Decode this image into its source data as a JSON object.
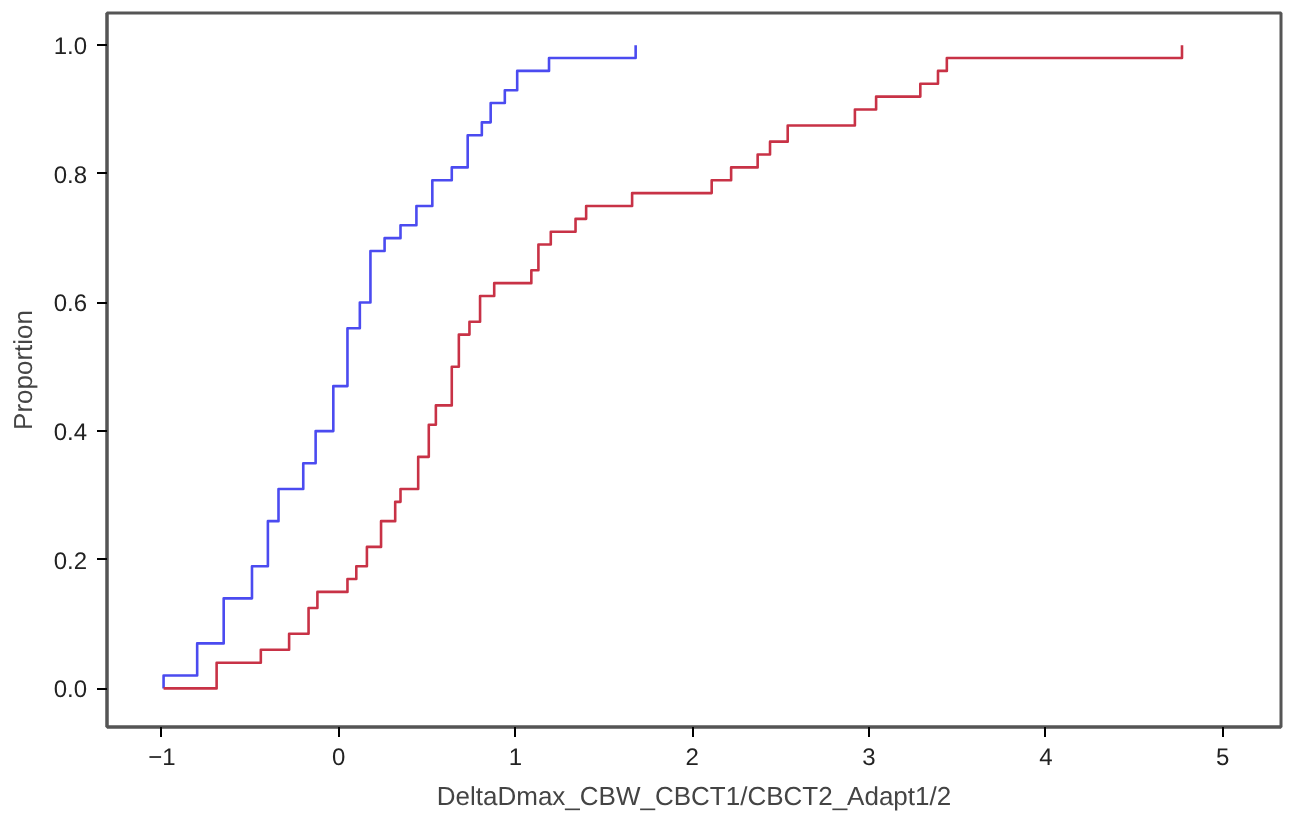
{
  "chart_data": {
    "type": "step",
    "xlabel": "DeltaDmax_CBW_CBCT1/CBCT2_Adapt1/2",
    "ylabel": "Proportion",
    "xlim": [
      -1.31,
      5.33
    ],
    "ylim": [
      -0.06,
      1.05
    ],
    "xticks": [
      -1,
      0,
      1,
      2,
      3,
      4,
      5
    ],
    "yticks": [
      {
        "value": 0,
        "label": "0.0"
      },
      {
        "value": 0.2,
        "label": "0.2"
      },
      {
        "value": 0.4,
        "label": "0.4"
      },
      {
        "value": 0.6,
        "label": "0.6"
      },
      {
        "value": 0.8,
        "label": "0.8"
      },
      {
        "value": 1,
        "label": "1.0"
      }
    ],
    "grid": false,
    "line_style": "solid",
    "marker": "none",
    "series": [
      {
        "color": "#4b4bf0",
        "x": [
          -0.99,
          -0.99,
          -0.8,
          -0.65,
          -0.49,
          -0.4,
          -0.34,
          -0.2,
          -0.13,
          -0.03,
          0.05,
          0.12,
          0.18,
          0.26,
          0.35,
          0.44,
          0.53,
          0.64,
          0.73,
          0.81,
          0.86,
          0.94,
          1.01,
          1.19,
          1.68
        ],
        "values": [
          0.0,
          0.02,
          0.07,
          0.14,
          0.19,
          0.26,
          0.31,
          0.35,
          0.4,
          0.47,
          0.56,
          0.6,
          0.68,
          0.7,
          0.72,
          0.75,
          0.79,
          0.81,
          0.86,
          0.88,
          0.91,
          0.93,
          0.96,
          0.98,
          1.0
        ]
      },
      {
        "color": "#c83246",
        "x": [
          -0.99,
          -0.69,
          -0.44,
          -0.28,
          -0.17,
          -0.12,
          0.05,
          0.1,
          0.16,
          0.24,
          0.32,
          0.35,
          0.45,
          0.51,
          0.55,
          0.64,
          0.68,
          0.74,
          0.8,
          0.88,
          1.09,
          1.13,
          1.2,
          1.34,
          1.4,
          1.66,
          2.11,
          2.22,
          2.37,
          2.44,
          2.54,
          2.92,
          3.04,
          3.29,
          3.39,
          3.44,
          4.77
        ],
        "values": [
          0.0,
          0.04,
          0.06,
          0.085,
          0.125,
          0.15,
          0.17,
          0.19,
          0.22,
          0.26,
          0.29,
          0.31,
          0.36,
          0.41,
          0.44,
          0.5,
          0.55,
          0.57,
          0.61,
          0.63,
          0.65,
          0.69,
          0.71,
          0.73,
          0.75,
          0.77,
          0.79,
          0.81,
          0.83,
          0.85,
          0.875,
          0.9,
          0.92,
          0.94,
          0.96,
          0.98,
          1.0
        ]
      }
    ]
  }
}
